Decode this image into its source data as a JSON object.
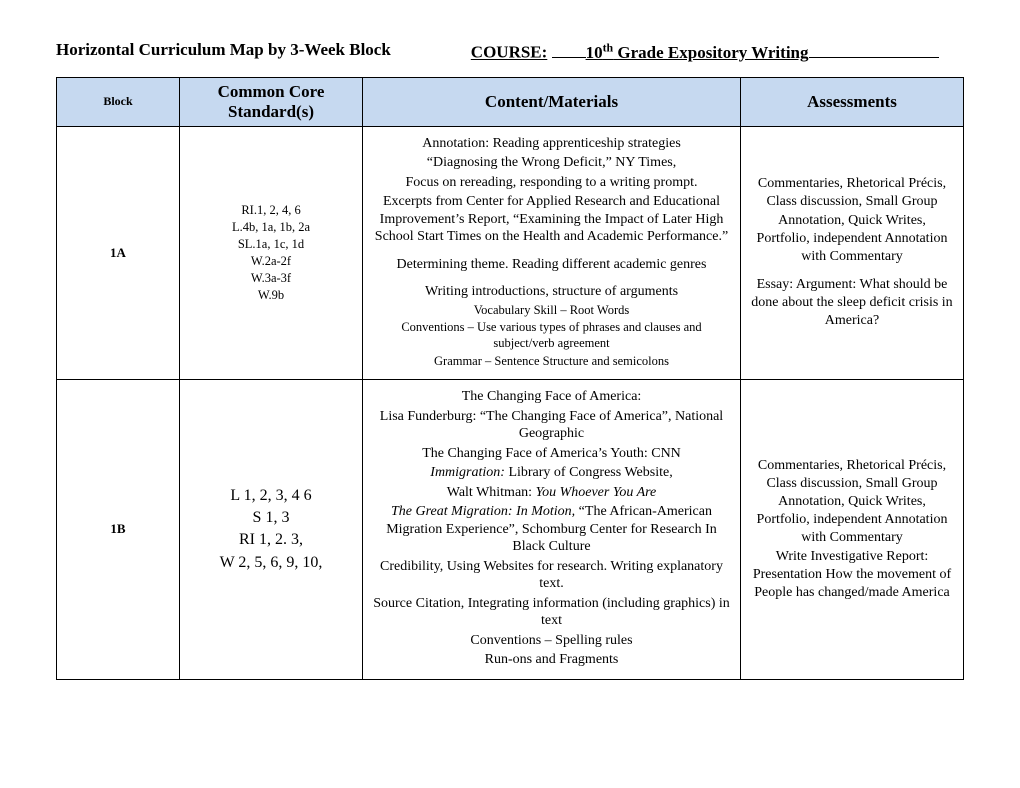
{
  "header": {
    "title_left": "Horizontal Curriculum Map by 3-Week Block",
    "course_label": "COURSE:",
    "course_name_prefix": "10",
    "course_name_sup": "th",
    "course_name_rest": " Grade Expository Writing"
  },
  "table": {
    "columns": [
      "Block",
      "Common Core Standard(s)",
      "Content/Materials",
      "Assessments"
    ],
    "header_bg": "#c6d9f0",
    "rows": [
      {
        "block": "1A",
        "standards_style": "small",
        "standards": [
          "RI.1, 2, 4, 6",
          "L.4b, 1a, 1b, 2a",
          "SL.1a, 1c, 1d",
          "W.2a-2f",
          "W.3a-3f",
          "W.9b"
        ],
        "content": [
          {
            "text": "Annotation: Reading apprenticeship strategies",
            "size": "normal"
          },
          {
            "text": "“Diagnosing the Wrong Deficit,” NY Times,",
            "size": "normal"
          },
          {
            "text": "Focus on rereading, responding to a writing prompt.",
            "size": "normal"
          },
          {
            "text": "Excerpts from Center for Applied Research and Educational Improvement’s Report, “Examining the Impact of Later High School Start Times on the Health and Academic Performance.”",
            "size": "normal"
          },
          {
            "text": "Determining theme.  Reading different academic genres",
            "size": "normal",
            "gap": true
          },
          {
            "text": "Writing introductions, structure of arguments",
            "size": "normal",
            "gap": true
          },
          {
            "text": "Vocabulary Skill – Root Words",
            "size": "small"
          },
          {
            "text": "Conventions – Use various types of phrases and clauses and subject/verb agreement",
            "size": "small"
          },
          {
            "text": "Grammar – Sentence Structure and semicolons",
            "size": "small"
          }
        ],
        "assessments": [
          {
            "text": "Commentaries, Rhetorical Précis, Class discussion, Small Group Annotation, Quick Writes,"
          },
          {
            "text": "Portfolio, independent Annotation with Commentary"
          },
          {
            "text": "Essay:  Argument:  What should be done about the sleep deficit crisis in America?",
            "gap": true
          }
        ]
      },
      {
        "block": "1B",
        "standards_style": "large",
        "standards": [
          "L 1, 2, 3, 4 6",
          "S 1, 3",
          "RI 1, 2. 3,",
          "W 2, 5, 6, 9, 10,"
        ],
        "content": [
          {
            "text": "The Changing Face of America:",
            "size": "normal"
          },
          {
            "text": "Lisa Funderburg: “The Changing Face of America”, National Geographic",
            "size": "normal"
          },
          {
            "text": "The Changing Face of America’s Youth: CNN",
            "size": "normal"
          },
          {
            "html": "<em>Immigration:</em>  Library of Congress Website,",
            "size": "normal"
          },
          {
            "html": "Walt Whitman:  <em>You Whoever You Are</em>",
            "size": "normal"
          },
          {
            "html": "<em>The Great Migration: In Motion,</em> “The African-American Migration Experience”, Schomburg Center for Research In Black Culture",
            "size": "normal"
          },
          {
            "text": "Credibility, Using Websites for research. Writing explanatory text.",
            "size": "normal"
          },
          {
            "text": "Source Citation, Integrating information (including graphics) in text",
            "size": "normal"
          },
          {
            "text": "Conventions – Spelling rules",
            "size": "normal"
          },
          {
            "text": "Run-ons and Fragments",
            "size": "normal"
          }
        ],
        "assessments": [
          {
            "text": "Commentaries, Rhetorical Précis, Class discussion, Small Group Annotation, Quick Writes,"
          },
          {
            "text": "Portfolio, independent Annotation with Commentary"
          },
          {
            "text": "Write Investigative Report: Presentation How the movement of People has changed/made America"
          }
        ]
      }
    ]
  }
}
